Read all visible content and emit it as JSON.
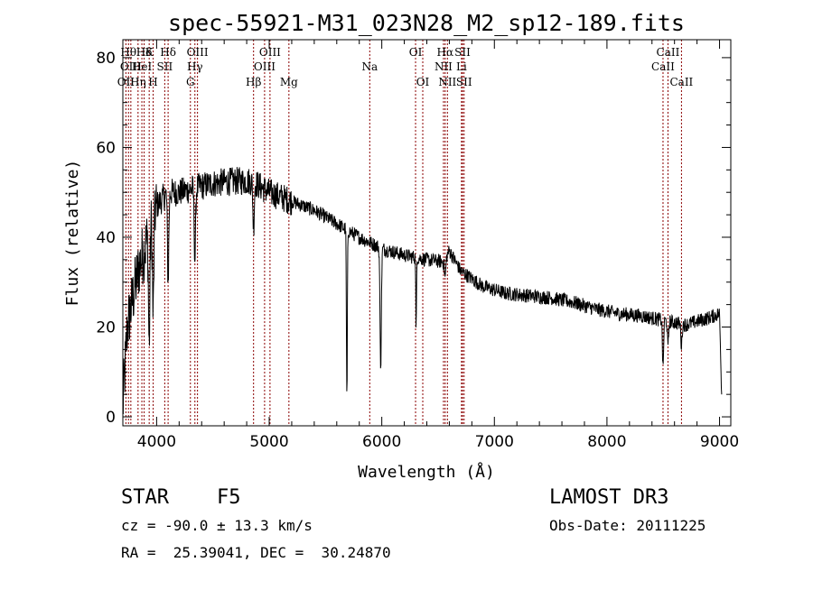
{
  "chart_data": {
    "type": "line",
    "title": "spec-55921-M31_023N28_M2_sp12-189.fits",
    "xlabel": "Wavelength (Å)",
    "ylabel": "Flux (relative)",
    "xlim": [
      3700,
      9100
    ],
    "ylim": [
      -2,
      84
    ],
    "xticks": [
      4000,
      5000,
      6000,
      7000,
      8000,
      9000
    ],
    "yticks": [
      0,
      20,
      40,
      60,
      80
    ],
    "line_color": "#8b0000",
    "spectrum_color": "#000000",
    "continuum_anchors": {
      "x": [
        3700,
        3740,
        3800,
        3850,
        3900,
        3950,
        4000,
        4100,
        4200,
        4350,
        4500,
        4700,
        4850,
        5000,
        5200,
        5400,
        5600,
        5800,
        6000,
        6200,
        6400,
        6550,
        6600,
        6700,
        6900,
        7100,
        7300,
        7500,
        7700,
        7900,
        8100,
        8300,
        8500,
        8700,
        8900,
        9000,
        9020
      ],
      "y": [
        2,
        20,
        28,
        34,
        38,
        43,
        47,
        50,
        50,
        51,
        52,
        52.5,
        52.5,
        50,
        48,
        46,
        43,
        40,
        37.5,
        36,
        35,
        34.5,
        37,
        32.5,
        29,
        27.5,
        27,
        26.5,
        25.5,
        24,
        23,
        22.5,
        21.5,
        20.5,
        22,
        23,
        4
      ]
    },
    "absorption_features": [
      {
        "center": 3934,
        "depth": 26,
        "width": 6
      },
      {
        "center": 3969,
        "depth": 22,
        "width": 6
      },
      {
        "center": 4102,
        "depth": 20,
        "width": 6
      },
      {
        "center": 4340,
        "depth": 16,
        "width": 6
      },
      {
        "center": 4861,
        "depth": 10,
        "width": 6
      },
      {
        "center": 5690,
        "depth": 38,
        "width": 4
      },
      {
        "center": 5990,
        "depth": 26,
        "width": 6
      },
      {
        "center": 6305,
        "depth": 17,
        "width": 3
      },
      {
        "center": 6563,
        "depth": 4,
        "width": 6
      },
      {
        "center": 8498,
        "depth": 11,
        "width": 5
      },
      {
        "center": 8542,
        "depth": 6,
        "width": 5
      },
      {
        "center": 8662,
        "depth": 5,
        "width": 5
      }
    ],
    "reference_lines": [
      {
        "label": "OII",
        "wavelength": 3727,
        "row": 3
      },
      {
        "label": "Hθ",
        "wavelength": 3750,
        "row": 1
      },
      {
        "label": "OIII",
        "wavelength": 3771,
        "row": 2
      },
      {
        "label": "Hη",
        "wavelength": 3835,
        "row": 3
      },
      {
        "label": "HeI",
        "wavelength": 3869,
        "row": 2
      },
      {
        "label": "Hδ",
        "wavelength": 3889,
        "row": 1
      },
      {
        "label": "K",
        "wavelength": 3934,
        "row": 1
      },
      {
        "label": "H",
        "wavelength": 3969,
        "row": 3
      },
      {
        "label": "SII",
        "wavelength": 4072,
        "row": 2
      },
      {
        "label": "Hδ",
        "wavelength": 4102,
        "row": 1
      },
      {
        "label": "G",
        "wavelength": 4300,
        "row": 3
      },
      {
        "label": "Hγ",
        "wavelength": 4340,
        "row": 2
      },
      {
        "label": "OIII",
        "wavelength": 4363,
        "row": 1
      },
      {
        "label": "Hβ",
        "wavelength": 4861,
        "row": 3
      },
      {
        "label": "OIII",
        "wavelength": 4959,
        "row": 2
      },
      {
        "label": "OIII",
        "wavelength": 5007,
        "row": 1
      },
      {
        "label": "Mg",
        "wavelength": 5175,
        "row": 3
      },
      {
        "label": "Na",
        "wavelength": 5893,
        "row": 2
      },
      {
        "label": "OI",
        "wavelength": 6300,
        "row": 1
      },
      {
        "label": "OI",
        "wavelength": 6364,
        "row": 3
      },
      {
        "label": "NII",
        "wavelength": 6548,
        "row": 2
      },
      {
        "label": "Hα",
        "wavelength": 6563,
        "row": 1
      },
      {
        "label": "NII",
        "wavelength": 6583,
        "row": 3
      },
      {
        "label": "Li",
        "wavelength": 6708,
        "row": 2
      },
      {
        "label": "SII",
        "wavelength": 6717,
        "row": 1
      },
      {
        "label": "SII",
        "wavelength": 6731,
        "row": 3
      },
      {
        "label": "CaII",
        "wavelength": 8498,
        "row": 2
      },
      {
        "label": "CaII",
        "wavelength": 8542,
        "row": 1
      },
      {
        "label": "CaII",
        "wavelength": 8662,
        "row": 3
      }
    ]
  },
  "info": {
    "object_class": "STAR",
    "subclass": "F5",
    "survey": "LAMOST DR3",
    "cz": "cz = -90.0 ± 13.3 km/s",
    "obs_date": "Obs-Date: 20111225",
    "coords": "RA =  25.39041, DEC =  30.24870"
  }
}
